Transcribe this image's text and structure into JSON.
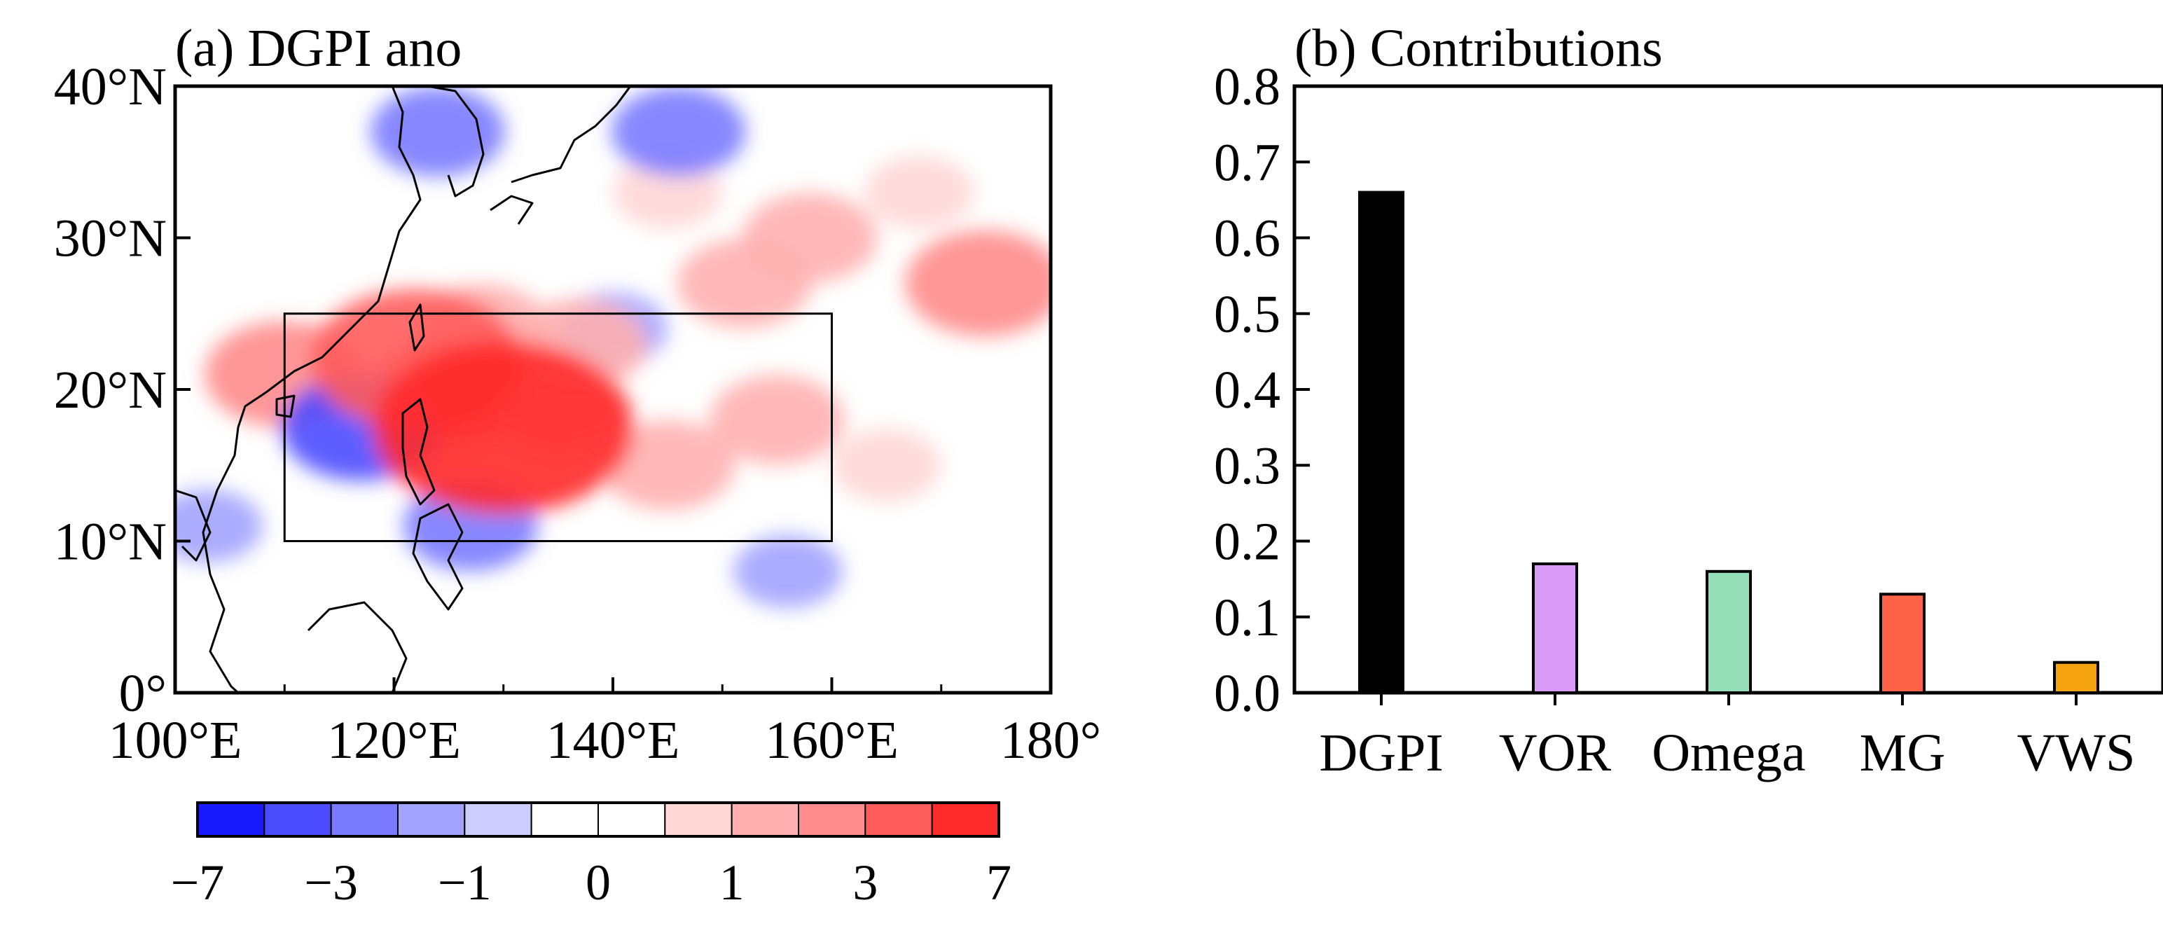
{
  "colors": {
    "black": "#000000",
    "coast": "#000000"
  },
  "chart_data": [
    {
      "type": "heatmap",
      "panel": "a",
      "title": "(a) DGPI ano",
      "x_ticks": [
        {
          "value": 100,
          "label": "100°E"
        },
        {
          "value": 120,
          "label": "120°E"
        },
        {
          "value": 140,
          "label": "140°E"
        },
        {
          "value": 160,
          "label": "160°E"
        },
        {
          "value": 180,
          "label": "180°"
        }
      ],
      "y_ticks": [
        {
          "value": 0,
          "label": "0°"
        },
        {
          "value": 10,
          "label": "10°N"
        },
        {
          "value": 20,
          "label": "20°N"
        },
        {
          "value": 30,
          "label": "30°N"
        },
        {
          "value": 40,
          "label": "40°N"
        }
      ],
      "xlim": [
        100,
        180
      ],
      "ylim": [
        0,
        40
      ],
      "key_region": {
        "lon": [
          110,
          160
        ],
        "lat": [
          10,
          25
        ]
      },
      "colorbar": {
        "levels": [
          -7,
          -5,
          -3,
          -2,
          -1,
          -0.5,
          0,
          0.5,
          1,
          2,
          3,
          5,
          7
        ],
        "colors": [
          "#1a1aff",
          "#4c4cff",
          "#7a7aff",
          "#a3a3ff",
          "#ccccff",
          "#ffffff",
          "#ffffff",
          "#ffd7d7",
          "#ffb0b0",
          "#ff8c8c",
          "#ff5c5c",
          "#ff2a2a"
        ],
        "tick_labels": [
          "−7",
          "−3",
          "−1",
          "0",
          "1",
          "3",
          "7"
        ],
        "tick_values": [
          -7,
          -3,
          -1,
          0,
          1,
          3,
          7
        ]
      },
      "anomaly_features": [
        {
          "lon": 130,
          "lat": 17.5,
          "value": 7
        },
        {
          "lon": 122,
          "lat": 22,
          "value": 5
        },
        {
          "lon": 125,
          "lat": 20,
          "value": 3
        },
        {
          "lon": 128,
          "lat": 24,
          "value": 2
        },
        {
          "lon": 135,
          "lat": 19,
          "value": 2
        },
        {
          "lon": 110,
          "lat": 21,
          "value": 3
        },
        {
          "lon": 137,
          "lat": 23,
          "value": 2
        },
        {
          "lon": 152,
          "lat": 27,
          "value": 2
        },
        {
          "lon": 158,
          "lat": 30,
          "value": 2
        },
        {
          "lon": 145,
          "lat": 15,
          "value": 2
        },
        {
          "lon": 155,
          "lat": 18,
          "value": 2
        },
        {
          "lon": 165,
          "lat": 15,
          "value": 1
        },
        {
          "lon": 174,
          "lat": 27,
          "value": 3
        },
        {
          "lon": 168,
          "lat": 33,
          "value": 1
        },
        {
          "lon": 145,
          "lat": 33,
          "value": 1
        },
        {
          "lon": 117,
          "lat": 17.5,
          "value": -3
        },
        {
          "lon": 127,
          "lat": 11,
          "value": -2
        },
        {
          "lon": 124,
          "lat": 37,
          "value": -2
        },
        {
          "lon": 146,
          "lat": 37,
          "value": -2
        },
        {
          "lon": 140,
          "lat": 24,
          "value": -1
        },
        {
          "lon": 103,
          "lat": 11,
          "value": -1
        },
        {
          "lon": 156,
          "lat": 8,
          "value": -1
        }
      ]
    },
    {
      "type": "bar",
      "panel": "b",
      "title": "(b) Contributions",
      "categories": [
        "DGPI",
        "VOR",
        "Omega",
        "MG",
        "VWS"
      ],
      "values": [
        0.66,
        0.17,
        0.16,
        0.13,
        0.04
      ],
      "bar_colors": [
        "#000000",
        "#d89cf6",
        "#96deb8",
        "#ff6347",
        "#f5a30f"
      ],
      "ylim": [
        0,
        0.8
      ],
      "y_ticks": [
        "0.0",
        "0.1",
        "0.2",
        "0.3",
        "0.4",
        "0.5",
        "0.6",
        "0.7",
        "0.8"
      ],
      "xlabel": "",
      "ylabel": ""
    }
  ]
}
